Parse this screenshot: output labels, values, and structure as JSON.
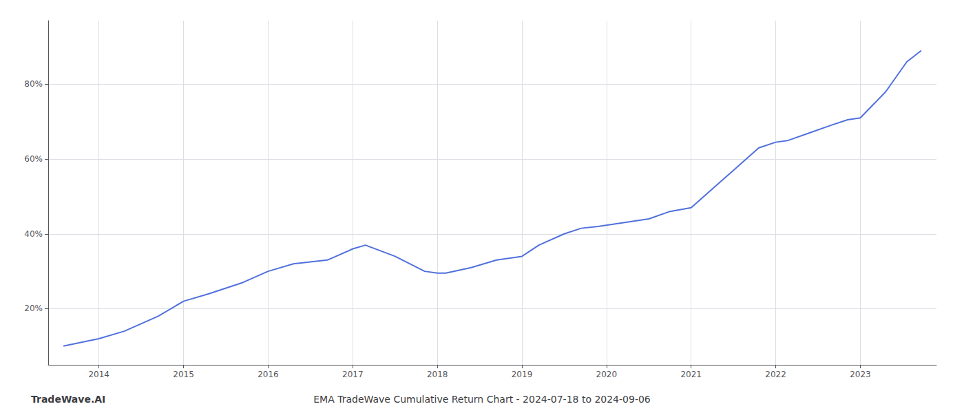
{
  "chart_data": {
    "type": "line",
    "title": "EMA TradeWave Cumulative Return Chart - 2024-07-18 to 2024-09-06",
    "annotations": [
      "TradeWave.AI"
    ],
    "x": [
      2013.58,
      2014.0,
      2014.3,
      2014.7,
      2015.0,
      2015.3,
      2015.7,
      2016.0,
      2016.3,
      2016.7,
      2017.0,
      2017.15,
      2017.5,
      2017.85,
      2018.0,
      2018.1,
      2018.4,
      2018.7,
      2019.0,
      2019.2,
      2019.5,
      2019.7,
      2019.9,
      2020.05,
      2020.2,
      2020.5,
      2020.75,
      2021.0,
      2021.2,
      2021.5,
      2021.8,
      2022.0,
      2022.15,
      2022.4,
      2022.65,
      2022.85,
      2023.0,
      2023.3,
      2023.55,
      2023.72
    ],
    "values": [
      10,
      12,
      14,
      18,
      22,
      24,
      27,
      30,
      32,
      33,
      36,
      37,
      34,
      30,
      29.5,
      29.5,
      31,
      33,
      34,
      37,
      40,
      41.5,
      42,
      42.5,
      43,
      44,
      46,
      47,
      51,
      57,
      63,
      64.5,
      65,
      67,
      69,
      70.5,
      71,
      78,
      86,
      89
    ],
    "xlim": [
      2013.4,
      2023.9
    ],
    "xticks": [
      2014,
      2015,
      2016,
      2017,
      2018,
      2019,
      2020,
      2021,
      2022,
      2023
    ],
    "ylim": [
      5,
      97
    ],
    "yticks": [
      {
        "value": 20,
        "label": "20%"
      },
      {
        "value": 40,
        "label": "40%"
      },
      {
        "value": 60,
        "label": "60%"
      },
      {
        "value": 80,
        "label": "80%"
      }
    ],
    "grid": true
  }
}
